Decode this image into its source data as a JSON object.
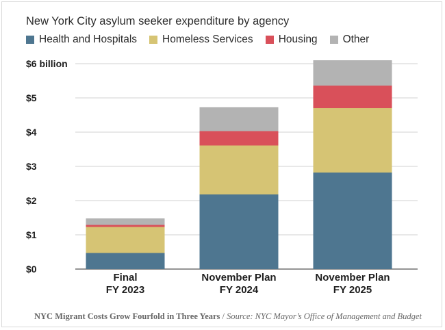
{
  "colors": {
    "health": "#4e7690",
    "homeless": "#d6c474",
    "housing": "#d9505a",
    "other": "#b3b3b3",
    "grid": "#d0d0d0",
    "axis": "#555555"
  },
  "chart_data": {
    "type": "bar",
    "stacked": true,
    "title": "New York City asylum seeker expenditure by agency",
    "categories": [
      [
        "Final",
        "FY 2023"
      ],
      [
        "November Plan",
        "FY 2024"
      ],
      [
        "November Plan",
        "FY 2025"
      ]
    ],
    "series": [
      {
        "name": "Health and Hospitals",
        "color_key": "health",
        "values": [
          0.47,
          2.18,
          2.82
        ]
      },
      {
        "name": "Homeless Services",
        "color_key": "homeless",
        "values": [
          0.76,
          1.43,
          1.88
        ]
      },
      {
        "name": "Housing",
        "color_key": "housing",
        "values": [
          0.06,
          0.42,
          0.66
        ]
      },
      {
        "name": "Other",
        "color_key": "other",
        "values": [
          0.19,
          0.7,
          0.74
        ]
      }
    ],
    "ylim": [
      0,
      6
    ],
    "yticks": [
      0,
      1,
      2,
      3,
      4,
      5,
      6
    ],
    "ytick_labels": [
      "$0",
      "$1",
      "$2",
      "$3",
      "$4",
      "$5",
      "$6 billion"
    ],
    "xlabel": "",
    "ylabel": "",
    "grid": true,
    "legend_position": "top-left"
  },
  "caption": {
    "title": "NYC Migrant Costs Grow Fourfold in Three Years",
    "separator": " / ",
    "source": "Source: NYC Mayor’s Office of Management and Budget"
  }
}
